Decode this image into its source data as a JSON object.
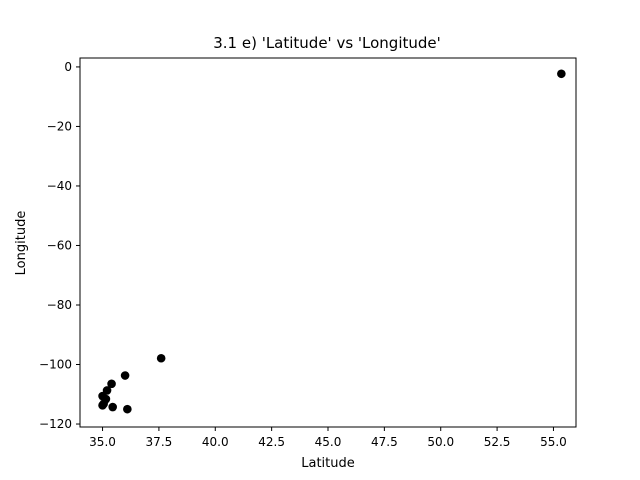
{
  "chart_data": {
    "type": "scatter",
    "title": "3.1 e) 'Latitude' vs 'Longitude'",
    "xlabel": "Latitude",
    "ylabel": "Longitude",
    "xlim": [
      34.0,
      56.0
    ],
    "ylim": [
      -121.0,
      3.0
    ],
    "xticks": [
      35.0,
      37.5,
      40.0,
      42.5,
      45.0,
      47.5,
      50.0,
      52.5,
      55.0
    ],
    "xtick_labels": [
      "35.0",
      "37.5",
      "40.0",
      "42.5",
      "45.0",
      "47.5",
      "50.0",
      "52.5",
      "55.0"
    ],
    "yticks": [
      0,
      -20,
      -40,
      -60,
      -80,
      -100,
      -120
    ],
    "ytick_labels": [
      "0",
      "−20",
      "−40",
      "−60",
      "−80",
      "−100",
      "−120"
    ],
    "grid": false,
    "marker_color": "#000000",
    "points": [
      {
        "x": 55.35,
        "y": -2.3
      },
      {
        "x": 37.6,
        "y": -97.9
      },
      {
        "x": 36.0,
        "y": -103.7
      },
      {
        "x": 35.4,
        "y": -106.5
      },
      {
        "x": 35.2,
        "y": -108.7
      },
      {
        "x": 35.0,
        "y": -110.6
      },
      {
        "x": 35.15,
        "y": -111.6
      },
      {
        "x": 35.05,
        "y": -113.2
      },
      {
        "x": 35.0,
        "y": -113.7
      },
      {
        "x": 35.45,
        "y": -114.3
      },
      {
        "x": 36.1,
        "y": -115.0
      }
    ]
  }
}
